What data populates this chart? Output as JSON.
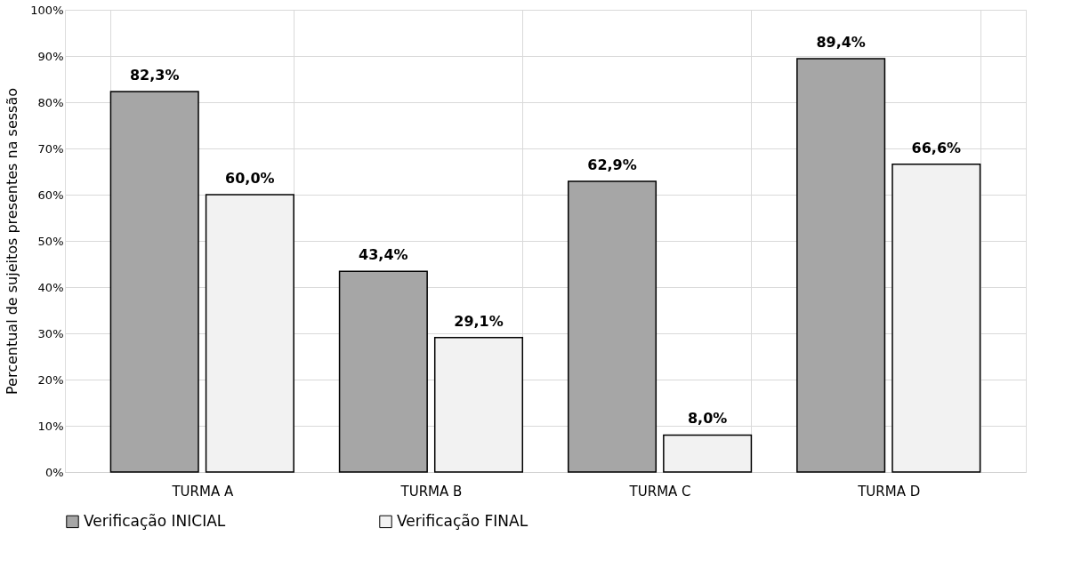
{
  "chart_data": {
    "type": "bar",
    "ylabel": "Percentual de sujeitos presentes na sessão",
    "categories": [
      "TURMA A",
      "TURMA B",
      "TURMA C",
      "TURMA D"
    ],
    "series": [
      {
        "name": "Verificação INICIAL",
        "color": "#a6a6a6",
        "values": [
          82.3,
          43.4,
          62.9,
          89.4
        ],
        "value_labels": [
          "82,3%",
          "43,4%",
          "62,9%",
          "89,4%"
        ]
      },
      {
        "name": "Verificação FINAL",
        "color": "#f2f2f2",
        "values": [
          60.0,
          29.1,
          8.0,
          66.6
        ],
        "value_labels": [
          "60,0%",
          "29,1%",
          "8,0%",
          "66,6%"
        ]
      }
    ],
    "ylim": [
      0,
      100
    ],
    "yticks": [
      {
        "value": 0,
        "label": "0%"
      },
      {
        "value": 10,
        "label": "10%"
      },
      {
        "value": 20,
        "label": "20%"
      },
      {
        "value": 30,
        "label": "30%"
      },
      {
        "value": 40,
        "label": "40%"
      },
      {
        "value": 50,
        "label": "50%"
      },
      {
        "value": 60,
        "label": "60%"
      },
      {
        "value": 70,
        "label": "70%"
      },
      {
        "value": 80,
        "label": "80%"
      },
      {
        "value": 90,
        "label": "90%"
      },
      {
        "value": 100,
        "label": "100%"
      }
    ],
    "grid": true,
    "legend": "bottom"
  }
}
